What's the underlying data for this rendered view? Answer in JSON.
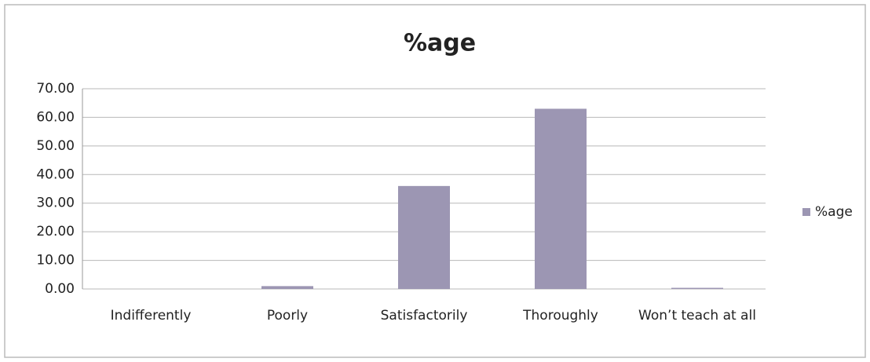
{
  "chart_data": {
    "type": "bar",
    "title": "%age",
    "categories": [
      "Indifferently",
      "Poorly",
      "Satisfactorily",
      "Thoroughly",
      "Won’t teach at all"
    ],
    "series": [
      {
        "name": "%age",
        "color": "#9c96b3",
        "values": [
          0,
          1,
          36,
          63,
          0.4
        ]
      }
    ],
    "ylim": [
      0,
      70
    ],
    "yticks": [
      {
        "value": 0,
        "label": "0.00"
      },
      {
        "value": 10,
        "label": "10.00"
      },
      {
        "value": 20,
        "label": "20.00"
      },
      {
        "value": 30,
        "label": "30.00"
      },
      {
        "value": 40,
        "label": "40.00"
      },
      {
        "value": 50,
        "label": "50.00"
      },
      {
        "value": 60,
        "label": "60.00"
      },
      {
        "value": 70,
        "label": "70.00"
      }
    ],
    "grid": true,
    "legend": "right"
  }
}
